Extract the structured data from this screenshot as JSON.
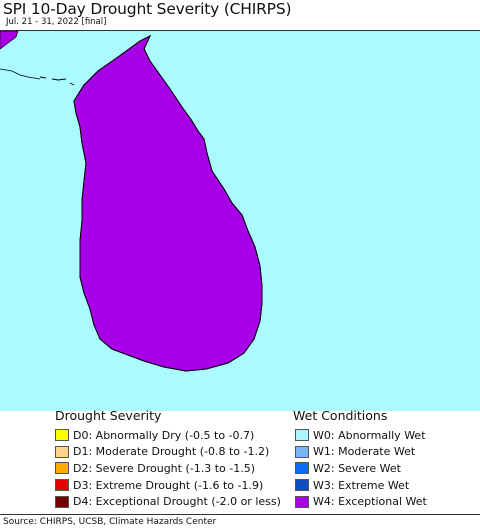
{
  "header": {
    "title": "SPI 10-Day Drought Severity (CHIRPS)",
    "subtitle": "Jul. 21 - 31, 2022 [final]"
  },
  "map": {
    "ocean_color": "#aafaff",
    "land_color": "#a800e6",
    "extreme_wet_color": "#0d4fc0",
    "boundary_color": "#6e2a8a",
    "coast_color": "#000000"
  },
  "legend": {
    "drought": {
      "heading": "Drought Severity",
      "items": [
        {
          "code": "D0",
          "label": "D0: Abnormally Dry (-0.5 to -0.7)",
          "color": "#ffff00"
        },
        {
          "code": "D1",
          "label": "D1: Moderate Drought (-0.8 to -1.2)",
          "color": "#fcd38a"
        },
        {
          "code": "D2",
          "label": "D2: Severe Drought (-1.3 to -1.5)",
          "color": "#ffaa00"
        },
        {
          "code": "D3",
          "label": "D3: Extreme Drought (-1.6 to -1.9)",
          "color": "#e60000"
        },
        {
          "code": "D4",
          "label": "D4: Exceptional Drought (-2.0 or less)",
          "color": "#730000"
        }
      ]
    },
    "wet": {
      "heading": "Wet Conditions",
      "items": [
        {
          "code": "W0",
          "label": "W0: Abnormally Wet",
          "color": "#aaf5ff"
        },
        {
          "code": "W1",
          "label": "W1: Moderate Wet",
          "color": "#7ab6f5"
        },
        {
          "code": "W2",
          "label": "W2: Severe Wet",
          "color": "#0a6cf5"
        },
        {
          "code": "W3",
          "label": "W3: Extreme Wet",
          "color": "#0d4fc0"
        },
        {
          "code": "W4",
          "label": "W4: Exceptional Wet",
          "color": "#a800e6"
        }
      ]
    }
  },
  "footer": {
    "source": "Source: CHIRPS, UCSB, Climate Hazards Center"
  }
}
